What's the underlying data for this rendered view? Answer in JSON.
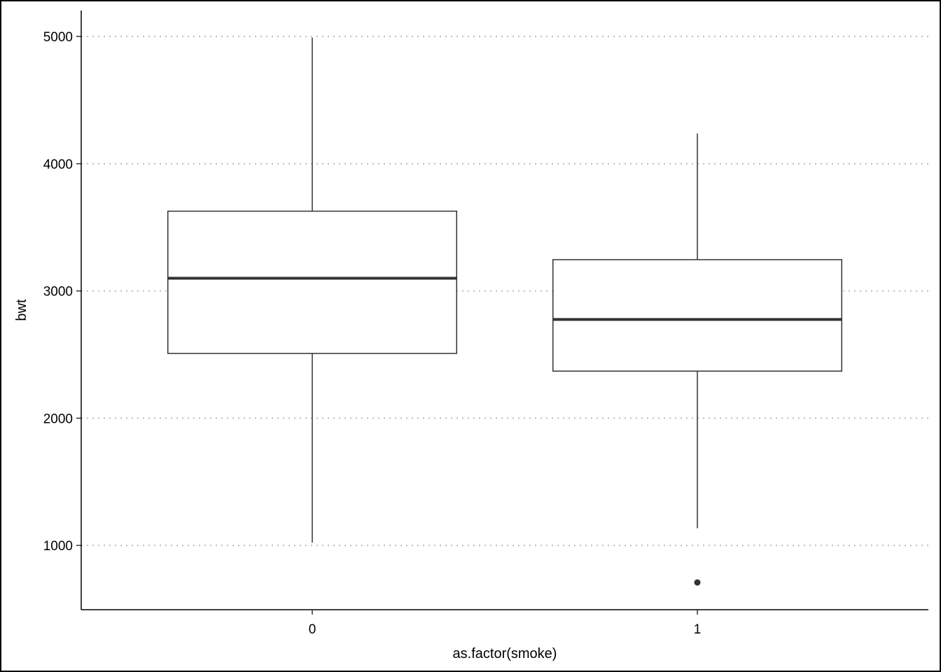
{
  "chart_data": {
    "type": "box",
    "x_label": "as.factor(smoke)",
    "y_label": "bwt",
    "categories": [
      "0",
      "1"
    ],
    "boxes": [
      {
        "min": 1021,
        "q1": 2509,
        "median": 3100,
        "q3": 3627,
        "max": 4990,
        "outliers": []
      },
      {
        "min": 1135,
        "q1": 2370,
        "median": 2776,
        "q3": 3246,
        "max": 4238,
        "outliers": [
          709
        ]
      }
    ],
    "ylim": [
      495,
      5204
    ],
    "yticks": [
      1000,
      2000,
      3000,
      4000,
      5000
    ],
    "grid": true,
    "color": "#333333"
  }
}
